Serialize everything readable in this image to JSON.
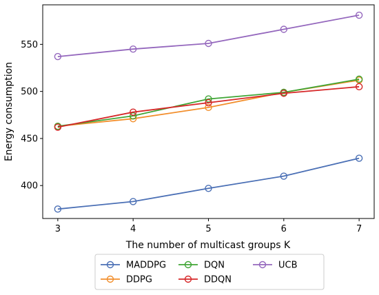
{
  "chart_data": {
    "type": "line",
    "title": "",
    "xlabel": "The number of multicast groups K",
    "ylabel": "Energy consumption",
    "x": [
      3,
      4,
      5,
      6,
      7
    ],
    "xlim": [
      2.8,
      7.2
    ],
    "ylim": [
      365,
      592
    ],
    "xticks": [
      "3",
      "4",
      "5",
      "6",
      "7"
    ],
    "yticks": [
      "400",
      "450",
      "500",
      "550"
    ],
    "ytick_values": [
      400,
      450,
      500,
      550
    ],
    "grid": false,
    "legend_position": "bottom-center",
    "marker": "hollow-circle",
    "series": [
      {
        "name": "MADDPG",
        "color": "#4a6fb5",
        "values": [
          375,
          383,
          397,
          410,
          429
        ]
      },
      {
        "name": "DDPG",
        "color": "#f28e2b",
        "values": [
          463,
          471,
          483,
          499,
          512
        ]
      },
      {
        "name": "DQN",
        "color": "#3fa535",
        "values": [
          463,
          474,
          492,
          499,
          513
        ]
      },
      {
        "name": "DDQN",
        "color": "#d62728",
        "values": [
          462,
          478,
          488,
          498,
          505
        ]
      },
      {
        "name": "UCB",
        "color": "#9467bd",
        "values": [
          537,
          545,
          551,
          566,
          581
        ]
      }
    ]
  }
}
